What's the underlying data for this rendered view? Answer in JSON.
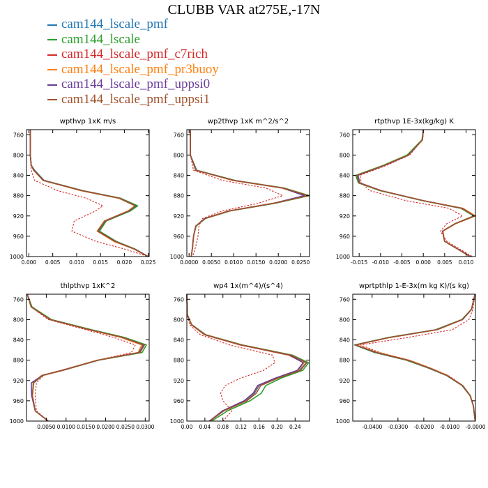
{
  "title": "CLUBB VAR at275E,-17N",
  "legend": [
    {
      "name": "cam144_lscale_pmf",
      "color": "#1f77b4"
    },
    {
      "name": "cam144_lscale",
      "color": "#2ca02c"
    },
    {
      "name": "cam144_lscale_pmf_c7rich",
      "color": "#d62728"
    },
    {
      "name": "cam144_lscale_pmf_pr3buoy",
      "color": "#ff7f0e"
    },
    {
      "name": "cam144_lscale_pmf_uppsi0",
      "color": "#6a3d9a"
    },
    {
      "name": "cam144_lscale_pmf_uppsi1",
      "color": "#a0522d"
    }
  ],
  "chart_data": [
    {
      "type": "line",
      "title": "wpthvp   1xK m/s",
      "ylim": [
        1000,
        750
      ],
      "yticks": [
        760,
        800,
        840,
        880,
        920,
        960,
        1000
      ],
      "xlim": [
        -0.0005,
        0.0252
      ],
      "xticks": [
        0.0,
        0.005,
        0.01,
        0.015,
        0.02,
        0.025
      ],
      "xticklabels": [
        "0.000",
        "0.005",
        "0.010",
        "0.015",
        "0.020",
        "0.025"
      ],
      "y": [
        750,
        800,
        820,
        830,
        850,
        870,
        885,
        900,
        910,
        930,
        950,
        970,
        985,
        1000
      ],
      "series": [
        {
          "x": [
            0.0003,
            0.0003,
            0.0005,
            0.001,
            0.003,
            0.011,
            0.019,
            0.0225,
            0.021,
            0.016,
            0.0145,
            0.018,
            0.022,
            0.025
          ]
        },
        {
          "x": [
            0.0003,
            0.0003,
            0.0005,
            0.0012,
            0.0032,
            0.0113,
            0.0192,
            0.0228,
            0.0213,
            0.0162,
            0.0148,
            0.0183,
            0.0222,
            0.025
          ]
        },
        {
          "x": [
            0.0003,
            0.0003,
            0.0004,
            0.0005,
            0.0012,
            0.006,
            0.012,
            0.0155,
            0.014,
            0.0095,
            0.009,
            0.014,
            0.02,
            0.025
          ]
        },
        {
          "x": [
            0.0003,
            0.0003,
            0.0005,
            0.001,
            0.003,
            0.0108,
            0.0188,
            0.0222,
            0.0208,
            0.0158,
            0.0143,
            0.0178,
            0.022,
            0.025
          ]
        },
        {
          "x": [
            0.0003,
            0.0003,
            0.0005,
            0.0011,
            0.0031,
            0.0111,
            0.019,
            0.0224,
            0.021,
            0.016,
            0.0145,
            0.0181,
            0.0221,
            0.025
          ]
        },
        {
          "x": [
            0.0003,
            0.0003,
            0.0005,
            0.001,
            0.003,
            0.011,
            0.0189,
            0.0223,
            0.0209,
            0.0159,
            0.0144,
            0.018,
            0.022,
            0.025
          ]
        }
      ]
    },
    {
      "type": "line",
      "title": "wp2thvp   1xK m^2/s^2",
      "ylim": [
        1000,
        750
      ],
      "yticks": [
        760,
        800,
        840,
        880,
        920,
        960,
        1000
      ],
      "xlim": [
        -0.0005,
        0.027
      ],
      "xticks": [
        0.0,
        0.005,
        0.01,
        0.015,
        0.02,
        0.025
      ],
      "xticklabels": [
        "0.0000",
        "0.0050",
        "0.0100",
        "0.0150",
        "0.0200",
        "0.0250"
      ],
      "y": [
        750,
        800,
        830,
        850,
        865,
        880,
        895,
        910,
        925,
        940,
        960,
        980,
        1000
      ],
      "series": [
        {
          "x": [
            0.0003,
            0.0003,
            0.0015,
            0.01,
            0.021,
            0.0265,
            0.019,
            0.009,
            0.0035,
            0.0015,
            0.001,
            0.0008,
            0.0005
          ]
        },
        {
          "x": [
            0.0003,
            0.0003,
            0.0017,
            0.0103,
            0.0213,
            0.027,
            0.0193,
            0.0093,
            0.0037,
            0.0016,
            0.001,
            0.0008,
            0.0005
          ]
        },
        {
          "x": [
            0.0003,
            0.0003,
            0.001,
            0.0075,
            0.0172,
            0.021,
            0.0155,
            0.0075,
            0.003,
            0.0022,
            0.002,
            0.0015,
            0.0008
          ]
        },
        {
          "x": [
            0.0003,
            0.0003,
            0.0015,
            0.0098,
            0.0208,
            0.0262,
            0.0188,
            0.0088,
            0.0035,
            0.0015,
            0.001,
            0.0008,
            0.0005
          ]
        },
        {
          "x": [
            0.0003,
            0.0003,
            0.0016,
            0.0101,
            0.021,
            0.0258,
            0.0189,
            0.009,
            0.0035,
            0.0015,
            0.001,
            0.0008,
            0.0005
          ]
        },
        {
          "x": [
            0.0003,
            0.0003,
            0.0015,
            0.01,
            0.0211,
            0.0267,
            0.0191,
            0.0091,
            0.0036,
            0.0015,
            0.001,
            0.0008,
            0.0005
          ]
        }
      ]
    },
    {
      "type": "line",
      "title": "rtpthvp   1E-3x(kg/kg) K",
      "ylim": [
        1000,
        750
      ],
      "yticks": [
        760,
        800,
        840,
        880,
        920,
        960,
        1000
      ],
      "xlim": [
        -0.0165,
        0.0122
      ],
      "xticks": [
        -0.015,
        -0.01,
        -0.005,
        0.0,
        0.005,
        0.01
      ],
      "xticklabels": [
        "-0.015",
        "-0.010",
        "-0.005",
        "0.000",
        "0.005",
        "0.010"
      ],
      "y": [
        750,
        770,
        800,
        820,
        840,
        855,
        870,
        890,
        905,
        920,
        935,
        950,
        970,
        985,
        1000
      ],
      "series": [
        {
          "x": [
            0.0,
            -0.0002,
            -0.0035,
            -0.009,
            -0.0155,
            -0.015,
            -0.01,
            0.0,
            0.009,
            0.012,
            0.0075,
            0.0045,
            0.005,
            0.008,
            0.011
          ]
        },
        {
          "x": [
            0.0,
            -0.0003,
            -0.0038,
            -0.0093,
            -0.0158,
            -0.0152,
            -0.0102,
            -0.0002,
            0.0088,
            0.0118,
            0.0074,
            0.0045,
            0.005,
            0.008,
            0.011
          ]
        },
        {
          "x": [
            0.0,
            -0.0002,
            -0.0032,
            -0.0085,
            -0.0148,
            -0.0145,
            -0.0125,
            -0.004,
            0.006,
            0.0092,
            0.0055,
            0.004,
            0.0055,
            0.0085,
            0.0115
          ]
        },
        {
          "x": [
            0.0,
            -0.0002,
            -0.0035,
            -0.009,
            -0.0154,
            -0.0149,
            -0.0099,
            0.0,
            0.0093,
            0.0122,
            0.0076,
            0.0046,
            0.005,
            0.008,
            0.011
          ]
        },
        {
          "x": [
            0.0,
            -0.0002,
            -0.0034,
            -0.0089,
            -0.0153,
            -0.0148,
            -0.0099,
            0.0001,
            0.0091,
            0.012,
            0.0075,
            0.0045,
            0.005,
            0.008,
            0.011
          ]
        },
        {
          "x": [
            0.0,
            -0.0002,
            -0.0035,
            -0.009,
            -0.0155,
            -0.015,
            -0.01,
            0.0,
            0.009,
            0.012,
            0.0075,
            0.0045,
            0.005,
            0.008,
            0.011
          ]
        }
      ]
    },
    {
      "type": "line",
      "title": "thlpthvp   1xK^2",
      "ylim": [
        1000,
        750
      ],
      "yticks": [
        760,
        800,
        840,
        880,
        920,
        960,
        1000
      ],
      "xlim": [
        0.0,
        0.031
      ],
      "xticks": [
        0.005,
        0.01,
        0.015,
        0.02,
        0.025,
        0.03
      ],
      "xticklabels": [
        "0.0050",
        "0.0100",
        "0.0150",
        "0.0200",
        "0.0250",
        "0.0300"
      ],
      "y": [
        750,
        775,
        800,
        820,
        835,
        850,
        865,
        880,
        900,
        910,
        925,
        950,
        980,
        1000
      ],
      "series": [
        {
          "x": [
            0.0002,
            0.0012,
            0.006,
            0.016,
            0.024,
            0.0295,
            0.0285,
            0.018,
            0.009,
            0.004,
            0.0018,
            0.0015,
            0.0022,
            0.0055
          ]
        },
        {
          "x": [
            0.0002,
            0.0014,
            0.0063,
            0.0165,
            0.0247,
            0.0303,
            0.0292,
            0.0183,
            0.0092,
            0.0041,
            0.0018,
            0.0015,
            0.0022,
            0.0055
          ]
        },
        {
          "x": [
            0.0002,
            0.0011,
            0.0055,
            0.015,
            0.022,
            0.0275,
            0.0265,
            0.018,
            0.0095,
            0.0043,
            0.0025,
            0.0022,
            0.0025,
            0.0055
          ]
        },
        {
          "x": [
            0.0002,
            0.0012,
            0.0059,
            0.0158,
            0.0238,
            0.0291,
            0.0282,
            0.0179,
            0.0089,
            0.0038,
            0.0017,
            0.0015,
            0.0022,
            0.0055
          ]
        },
        {
          "x": [
            0.0002,
            0.0012,
            0.006,
            0.016,
            0.0241,
            0.0296,
            0.0284,
            0.0181,
            0.009,
            0.004,
            0.0012,
            0.0013,
            0.0022,
            0.0055
          ]
        },
        {
          "x": [
            0.0002,
            0.0012,
            0.006,
            0.0161,
            0.0242,
            0.0298,
            0.0287,
            0.0181,
            0.0091,
            0.004,
            0.0017,
            0.0015,
            0.0022,
            0.0055
          ]
        }
      ]
    },
    {
      "type": "line",
      "title": "wp4   1x(m^4)/(s^4)",
      "ylim": [
        1000,
        750
      ],
      "yticks": [
        760,
        800,
        840,
        880,
        920,
        960,
        1000
      ],
      "xlim": [
        0.0,
        0.272
      ],
      "xticks": [
        0.0,
        0.04,
        0.08,
        0.12,
        0.16,
        0.2,
        0.24
      ],
      "xticklabels": [
        "0.00",
        "0.04",
        "0.08",
        "0.12",
        "0.16",
        "0.20",
        "0.24"
      ],
      "y": [
        750,
        790,
        810,
        830,
        850,
        870,
        885,
        900,
        915,
        930,
        945,
        960,
        980,
        1000
      ],
      "series": [
        {
          "x": [
            0.0,
            0.001,
            0.01,
            0.04,
            0.12,
            0.23,
            0.265,
            0.25,
            0.2,
            0.16,
            0.15,
            0.13,
            0.08,
            0.05
          ]
        },
        {
          "x": [
            0.0,
            0.001,
            0.011,
            0.042,
            0.123,
            0.234,
            0.27,
            0.257,
            0.21,
            0.175,
            0.165,
            0.14,
            0.09,
            0.055
          ]
        },
        {
          "x": [
            0.0,
            0.001,
            0.006,
            0.03,
            0.095,
            0.19,
            0.195,
            0.17,
            0.12,
            0.085,
            0.075,
            0.08,
            0.1,
            0.08
          ]
        },
        {
          "x": [
            0.0,
            0.001,
            0.01,
            0.039,
            0.118,
            0.225,
            0.26,
            0.247,
            0.198,
            0.158,
            0.148,
            0.128,
            0.08,
            0.05
          ]
        },
        {
          "x": [
            0.0,
            0.001,
            0.01,
            0.04,
            0.12,
            0.228,
            0.258,
            0.245,
            0.197,
            0.157,
            0.147,
            0.127,
            0.079,
            0.05
          ]
        },
        {
          "x": [
            0.0,
            0.001,
            0.01,
            0.041,
            0.121,
            0.231,
            0.266,
            0.252,
            0.203,
            0.164,
            0.154,
            0.133,
            0.082,
            0.051
          ]
        }
      ]
    },
    {
      "type": "line",
      "title": "wprtpthlp   1-E-3x(m kg K)/(s kg)",
      "ylim": [
        1000,
        750
      ],
      "yticks": [
        760,
        800,
        840,
        880,
        920,
        960,
        1000
      ],
      "xlim": [
        -0.0475,
        0.0
      ],
      "xticks": [
        -0.04,
        -0.03,
        -0.02,
        -0.01,
        0.0
      ],
      "xticklabels": [
        "-0.0400",
        "-0.0300",
        "-0.0200",
        "-0.0100",
        "-0.0000"
      ],
      "y": [
        750,
        780,
        800,
        820,
        835,
        850,
        865,
        880,
        895,
        910,
        930,
        950,
        970,
        1000
      ],
      "series": [
        {
          "x": [
            -0.0002,
            -0.0015,
            -0.005,
            -0.015,
            -0.033,
            -0.0465,
            -0.038,
            -0.026,
            -0.018,
            -0.011,
            -0.005,
            -0.002,
            -0.0008,
            -0.0001
          ]
        },
        {
          "x": [
            -0.0002,
            -0.0016,
            -0.0053,
            -0.0155,
            -0.0335,
            -0.0468,
            -0.039,
            -0.0268,
            -0.0185,
            -0.0113,
            -0.0052,
            -0.0021,
            -0.0008,
            -0.0001
          ]
        },
        {
          "x": [
            -0.0002,
            -0.001,
            -0.0025,
            -0.009,
            -0.026,
            -0.0445,
            -0.037,
            -0.0255,
            -0.0175,
            -0.0105,
            -0.0048,
            -0.0019,
            -0.0008,
            -0.0001
          ]
        },
        {
          "x": [
            -0.0002,
            -0.0015,
            -0.005,
            -0.0148,
            -0.0328,
            -0.0462,
            -0.0378,
            -0.0258,
            -0.0178,
            -0.0109,
            -0.005,
            -0.002,
            -0.0008,
            -0.0001
          ]
        },
        {
          "x": [
            -0.0002,
            -0.0015,
            -0.0051,
            -0.0151,
            -0.0331,
            -0.0466,
            -0.0385,
            -0.0263,
            -0.0182,
            -0.0111,
            -0.0051,
            -0.002,
            -0.0008,
            -0.0001
          ]
        },
        {
          "x": [
            -0.0002,
            -0.0015,
            -0.005,
            -0.015,
            -0.033,
            -0.0464,
            -0.0381,
            -0.0261,
            -0.018,
            -0.011,
            -0.005,
            -0.002,
            -0.0008,
            -0.0001
          ]
        }
      ]
    }
  ]
}
